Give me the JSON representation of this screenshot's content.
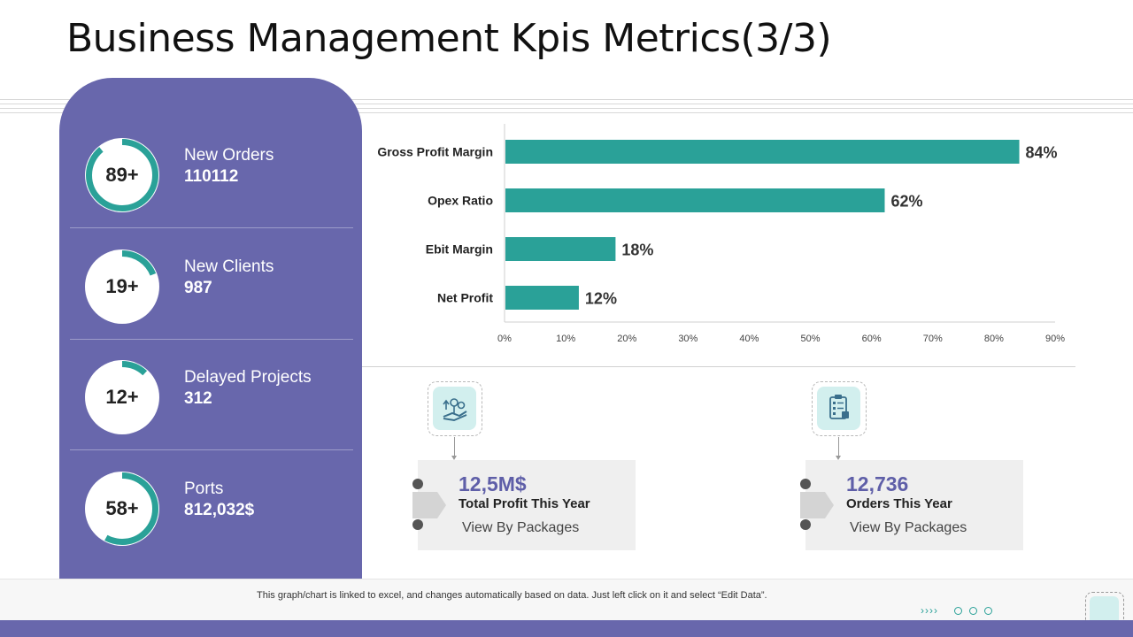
{
  "title": "Business Management Kpis Metrics(3/3)",
  "colors": {
    "purple": "#6867ac",
    "teal": "#2aa198",
    "ring_track": "#ffffff"
  },
  "kpis": [
    {
      "ring_label": "89+",
      "percent": 89,
      "label": "New Orders",
      "value": "110112"
    },
    {
      "ring_label": "19+",
      "percent": 19,
      "label": "New Clients",
      "value": "987"
    },
    {
      "ring_label": "12+",
      "percent": 12,
      "label": "Delayed Projects",
      "value": "312"
    },
    {
      "ring_label": "58+",
      "percent": 58,
      "label": "Ports",
      "value": "812,032$"
    }
  ],
  "chart_data": {
    "type": "bar",
    "orientation": "horizontal",
    "categories": [
      "Gross Profit Margin",
      "Opex Ratio",
      "Ebit Margin",
      "Net Profit"
    ],
    "values": [
      84,
      62,
      18,
      12
    ],
    "data_labels": [
      "84%",
      "62%",
      "18%",
      "12%"
    ],
    "xlim": [
      0,
      90
    ],
    "xticks": [
      "0%",
      "10%",
      "20%",
      "30%",
      "40%",
      "50%",
      "60%",
      "70%",
      "80%",
      "90%"
    ],
    "color": "#2aa198",
    "title": "",
    "xlabel": "",
    "ylabel": ""
  },
  "cards": [
    {
      "icon": "hand-money-plant-icon",
      "amount": "12,5M$",
      "caption": "Total Profit This Year",
      "link": "View By Packages"
    },
    {
      "icon": "clipboard-checklist-icon",
      "amount": "12,736",
      "caption": "Orders This Year",
      "link": "View By Packages"
    }
  ],
  "footer": {
    "note": "This graph/chart is linked to excel, and changes automatically based on data. Just left click on it and select “Edit Data”.",
    "nav": "››››"
  }
}
